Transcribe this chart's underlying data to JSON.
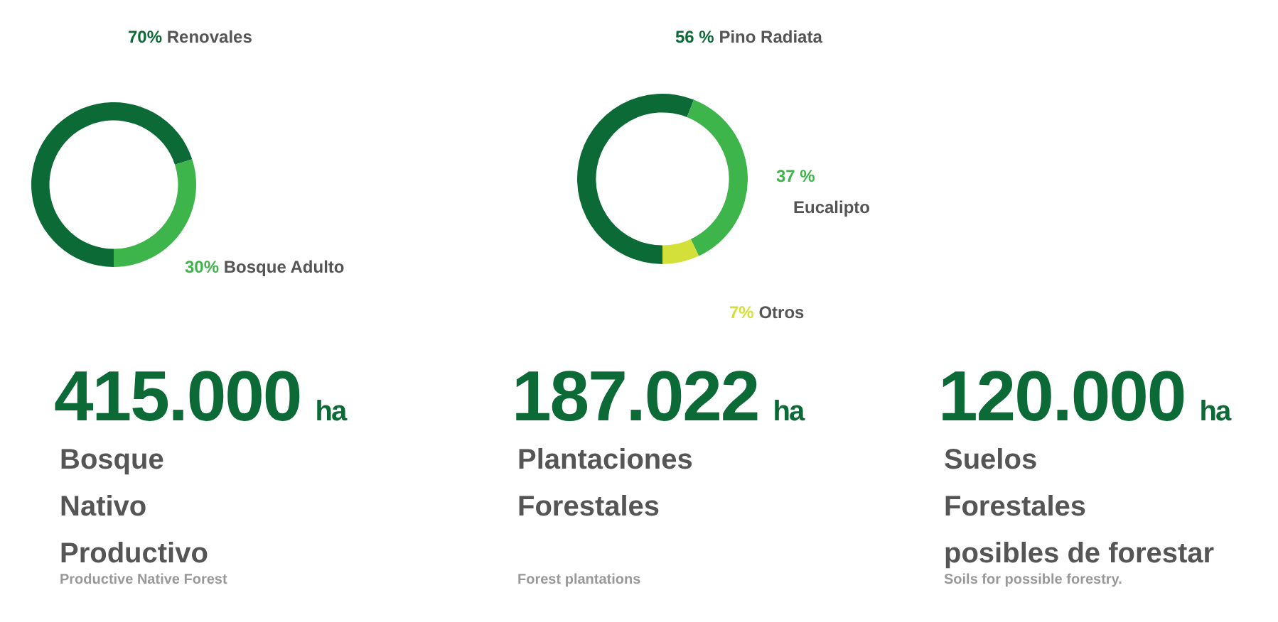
{
  "chart_data": [
    {
      "type": "donut",
      "categories": [
        "Renovales",
        "Bosque Adulto"
      ],
      "values": [
        70,
        30
      ],
      "value_labels": [
        "70%",
        "30%"
      ],
      "colors": [
        "#0b6a35",
        "#3db54a"
      ]
    },
    {
      "type": "donut",
      "categories": [
        "Pino Radiata",
        "Eucalipto",
        "Otros"
      ],
      "values": [
        56,
        37,
        7
      ],
      "value_labels": [
        "56 %",
        "37 %",
        "7%"
      ],
      "colors": [
        "#0b6a35",
        "#3db54a",
        "#d4e03a"
      ]
    },
    {
      "type": "other",
      "annotations": [
        "415.000",
        "ha",
        "Bosque\nNativo\nProductivo",
        "Productive Native Forest",
        "187.022",
        "ha",
        "Plantaciones\nForestales",
        "Forest plantations",
        "120.000",
        "ha",
        "Suelos\nForestales\nposibles de forestar",
        "Soils for possible forestry."
      ]
    }
  ]
}
